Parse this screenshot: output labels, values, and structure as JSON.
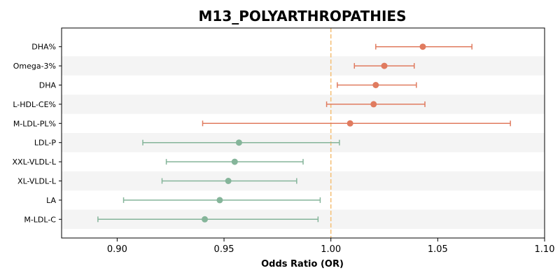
{
  "chart_data": {
    "type": "forest",
    "title": "M13_POLYARTHROPATHIES",
    "xlabel": "Odds Ratio (OR)",
    "xlim": [
      0.874,
      1.1
    ],
    "xticks": [
      0.9,
      0.95,
      1.0,
      1.05,
      1.1
    ],
    "xtick_labels": [
      "0.90",
      "0.95",
      "1.00",
      "1.05",
      "1.10"
    ],
    "reference_line": 1.0,
    "colors": {
      "positive": "#e07b5f",
      "negative": "#85b59a",
      "reference": "#f5c27a",
      "band": "#f4f4f4"
    },
    "items": [
      {
        "label": "DHA%",
        "or": 1.043,
        "lower": 1.021,
        "upper": 1.066
      },
      {
        "label": "Omega-3%",
        "or": 1.025,
        "lower": 1.011,
        "upper": 1.039
      },
      {
        "label": "DHA",
        "or": 1.021,
        "lower": 1.003,
        "upper": 1.04
      },
      {
        "label": "L-HDL-CE%",
        "or": 1.02,
        "lower": 0.998,
        "upper": 1.044
      },
      {
        "label": "M-LDL-PL%",
        "or": 1.009,
        "lower": 0.94,
        "upper": 1.084
      },
      {
        "label": "LDL-P",
        "or": 0.957,
        "lower": 0.912,
        "upper": 1.004
      },
      {
        "label": "XXL-VLDL-L",
        "or": 0.955,
        "lower": 0.923,
        "upper": 0.987
      },
      {
        "label": "XL-VLDL-L",
        "or": 0.952,
        "lower": 0.921,
        "upper": 0.984
      },
      {
        "label": "LA",
        "or": 0.948,
        "lower": 0.903,
        "upper": 0.995
      },
      {
        "label": "M-LDL-C",
        "or": 0.941,
        "lower": 0.891,
        "upper": 0.994
      }
    ]
  }
}
